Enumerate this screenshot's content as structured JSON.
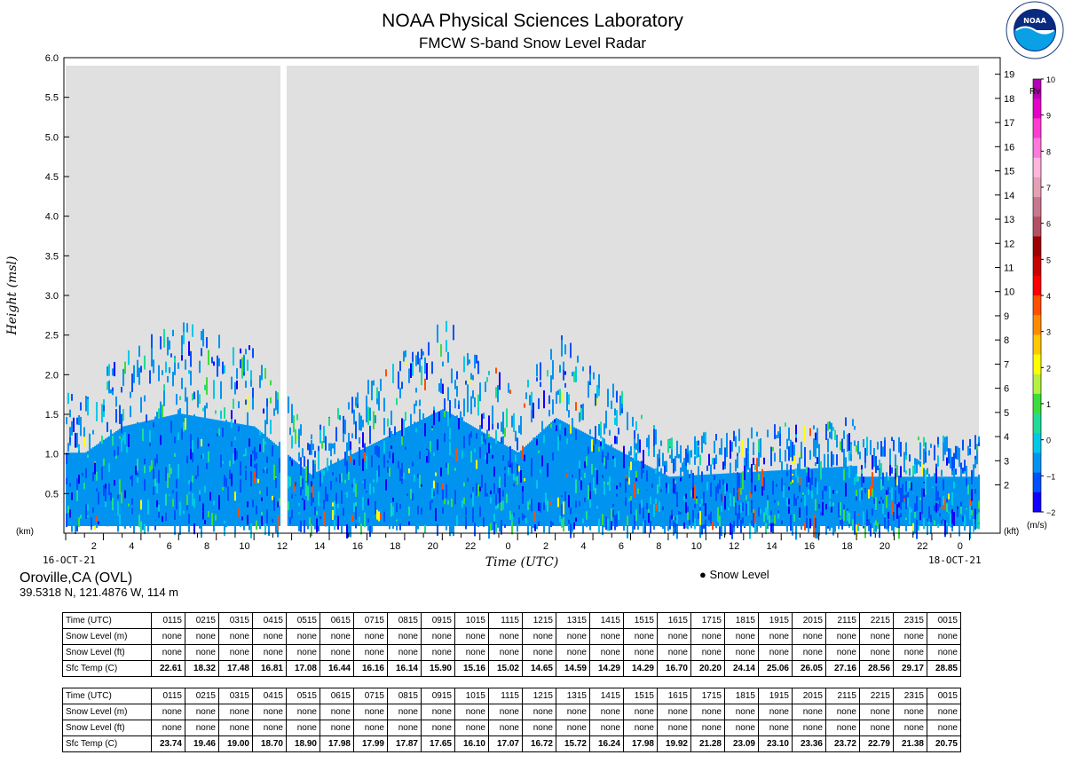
{
  "header": {
    "title": "NOAA Physical Sciences Laboratory",
    "subtitle": "FMCW S-band Snow Level Radar",
    "logo_text": "NOAA"
  },
  "chart_data": {
    "type": "heatmap",
    "xlabel": "Time (UTC)",
    "ylabel": "Height (msl)",
    "y_unit_left": "(km)",
    "y_unit_right": "(kft)",
    "ylim": [
      0,
      6.0
    ],
    "y_ticks_km": [
      "0.5",
      "1.0",
      "1.5",
      "2.0",
      "2.5",
      "3.0",
      "3.5",
      "4.0",
      "4.5",
      "5.0",
      "5.5",
      "6.0"
    ],
    "y_ticks_kft": [
      "2",
      "3",
      "4",
      "5",
      "6",
      "7",
      "8",
      "9",
      "10",
      "11",
      "12",
      "13",
      "14",
      "15",
      "16",
      "17",
      "18",
      "19"
    ],
    "x_ticks": [
      "2",
      "4",
      "6",
      "8",
      "10",
      "12",
      "14",
      "16",
      "18",
      "20",
      "22",
      "0",
      "2",
      "4",
      "6",
      "8",
      "10",
      "12",
      "14",
      "16",
      "18",
      "20",
      "22",
      "0"
    ],
    "start_date": "16-OCT-21",
    "end_date": "18-OCT-21",
    "colorbar": {
      "title": "Rv",
      "unit": "(m/s)",
      "ticks": [
        "−2",
        "−1",
        "0",
        "1",
        "2",
        "3",
        "4",
        "5",
        "6",
        "7",
        "8",
        "9",
        "10"
      ],
      "colors": [
        "#1400ff",
        "#0050ff",
        "#0094f0",
        "#00c8e6",
        "#1edc96",
        "#3cdc3c",
        "#b4f03c",
        "#ffff00",
        "#ffc800",
        "#ff8c00",
        "#ff5000",
        "#ff0000",
        "#c80000",
        "#a00000",
        "#b45064",
        "#c8788c",
        "#e6a0b4",
        "#ffb4dc",
        "#ff78dc",
        "#ff3cd2",
        "#e600c8",
        "#b400b4"
      ]
    },
    "legend": [
      "Snow Level"
    ],
    "series_notes": {
      "precip_tops_km": [
        {
          "time": "16-OCT-21 01 UTC",
          "top": 1.5
        },
        {
          "time": "16-OCT-21 03 UTC",
          "top": 2.1
        },
        {
          "time": "16-OCT-21 06 UTC",
          "top": 2.4
        },
        {
          "time": "16-OCT-21 10 UTC",
          "top": 2.1
        },
        {
          "time": "16-OCT-21 13 UTC",
          "top": 1.0
        },
        {
          "time": "16-OCT-21 20 UTC",
          "top": 2.5
        },
        {
          "time": "17-OCT-21 00 UTC",
          "top": 1.5
        },
        {
          "time": "17-OCT-21 02 UTC",
          "top": 2.3
        },
        {
          "time": "17-OCT-21 08 UTC",
          "top": 0.95
        },
        {
          "time": "17-OCT-21 18 UTC",
          "top": 1.2
        },
        {
          "time": "18-OCT-21 00 UTC",
          "top": 0.95
        }
      ]
    }
  },
  "location": {
    "name": "Oroville,CA (OVL)",
    "coords": "39.5318 N, 121.4876 W, 114 m"
  },
  "tables": [
    {
      "rows": [
        {
          "label": "Time (UTC)",
          "values": [
            "0115",
            "0215",
            "0315",
            "0415",
            "0515",
            "0615",
            "0715",
            "0815",
            "0915",
            "1015",
            "1115",
            "1215",
            "1315",
            "1415",
            "1515",
            "1615",
            "1715",
            "1815",
            "1915",
            "2015",
            "2115",
            "2215",
            "2315",
            "0015"
          ]
        },
        {
          "label": "Snow Level (m)",
          "values": [
            "none",
            "none",
            "none",
            "none",
            "none",
            "none",
            "none",
            "none",
            "none",
            "none",
            "none",
            "none",
            "none",
            "none",
            "none",
            "none",
            "none",
            "none",
            "none",
            "none",
            "none",
            "none",
            "none",
            "none"
          ]
        },
        {
          "label": "Snow Level (ft)",
          "values": [
            "none",
            "none",
            "none",
            "none",
            "none",
            "none",
            "none",
            "none",
            "none",
            "none",
            "none",
            "none",
            "none",
            "none",
            "none",
            "none",
            "none",
            "none",
            "none",
            "none",
            "none",
            "none",
            "none",
            "none"
          ]
        },
        {
          "label": "Sfc Temp (C)",
          "values": [
            "22.61",
            "18.32",
            "17.48",
            "16.81",
            "17.08",
            "16.44",
            "16.16",
            "16.14",
            "15.90",
            "15.16",
            "15.02",
            "14.65",
            "14.59",
            "14.29",
            "14.29",
            "16.70",
            "20.20",
            "24.14",
            "25.06",
            "26.05",
            "27.16",
            "28.56",
            "29.17",
            "28.85"
          ]
        }
      ]
    },
    {
      "rows": [
        {
          "label": "Time (UTC)",
          "values": [
            "0115",
            "0215",
            "0315",
            "0415",
            "0515",
            "0615",
            "0715",
            "0815",
            "0915",
            "1015",
            "1115",
            "1215",
            "1315",
            "1415",
            "1515",
            "1615",
            "1715",
            "1815",
            "1915",
            "2015",
            "2115",
            "2215",
            "2315",
            "0015"
          ]
        },
        {
          "label": "Snow Level (m)",
          "values": [
            "none",
            "none",
            "none",
            "none",
            "none",
            "none",
            "none",
            "none",
            "none",
            "none",
            "none",
            "none",
            "none",
            "none",
            "none",
            "none",
            "none",
            "none",
            "none",
            "none",
            "none",
            "none",
            "none",
            "none"
          ]
        },
        {
          "label": "Snow Level (ft)",
          "values": [
            "none",
            "none",
            "none",
            "none",
            "none",
            "none",
            "none",
            "none",
            "none",
            "none",
            "none",
            "none",
            "none",
            "none",
            "none",
            "none",
            "none",
            "none",
            "none",
            "none",
            "none",
            "none",
            "none",
            "none"
          ]
        },
        {
          "label": "Sfc Temp (C)",
          "values": [
            "23.74",
            "19.46",
            "19.00",
            "18.70",
            "18.90",
            "17.98",
            "17.99",
            "17.87",
            "17.65",
            "16.10",
            "17.07",
            "16.72",
            "15.72",
            "16.24",
            "17.98",
            "19.92",
            "21.28",
            "23.09",
            "23.10",
            "23.36",
            "23.72",
            "22.79",
            "21.38",
            "20.75"
          ]
        }
      ]
    }
  ]
}
